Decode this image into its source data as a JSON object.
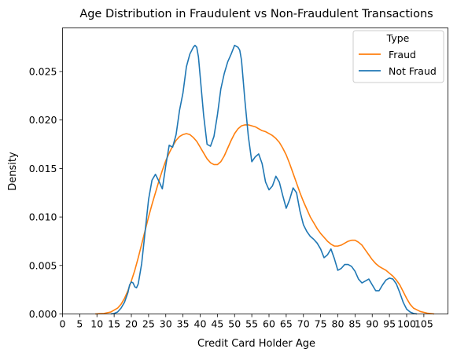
{
  "chart_data": {
    "type": "line",
    "title": "Age Distribution in Fraudulent vs Non-Fraudulent Transactions",
    "xlabel": "Credit Card Holder Age",
    "ylabel": "Density",
    "xlim": [
      0,
      112
    ],
    "ylim": [
      0,
      0.0295
    ],
    "x_ticks": [
      0,
      5,
      10,
      15,
      20,
      25,
      30,
      35,
      40,
      45,
      50,
      55,
      60,
      65,
      70,
      75,
      80,
      85,
      90,
      95,
      100,
      105
    ],
    "y_ticks": [
      0.0,
      0.005,
      0.01,
      0.015,
      0.02,
      0.025
    ],
    "y_tick_labels": [
      "0.000",
      "0.005",
      "0.010",
      "0.015",
      "0.020",
      "0.025"
    ],
    "grid": false,
    "legend": {
      "title": "Type",
      "placement": "top-right"
    },
    "series": [
      {
        "name": "Fraud",
        "color": "#ff7f0e",
        "x": [
          9.5,
          12,
          14,
          16,
          17,
          18,
          19,
          20,
          21,
          22,
          23,
          24,
          25,
          26,
          27,
          28,
          29,
          30,
          31,
          32,
          33,
          34,
          35,
          36,
          37,
          38,
          39,
          40,
          41,
          42,
          43,
          44,
          45,
          46,
          47,
          48,
          49,
          50,
          51,
          52,
          53,
          54,
          55,
          56,
          57,
          58,
          59,
          60,
          61,
          62,
          63,
          64,
          65,
          66,
          67,
          68,
          69,
          70,
          71,
          72,
          73,
          74,
          75,
          76,
          77,
          78,
          79,
          80,
          81,
          82,
          83,
          84,
          85,
          86,
          87,
          88,
          89,
          90,
          91,
          92,
          93,
          94,
          95,
          96,
          97,
          98,
          99,
          100,
          101,
          102,
          104,
          106,
          108
        ],
        "y": [
          0.0,
          5e-05,
          0.0002,
          0.0006,
          0.001,
          0.0016,
          0.0024,
          0.0034,
          0.0045,
          0.0058,
          0.0072,
          0.0086,
          0.01,
          0.0113,
          0.0125,
          0.0137,
          0.0148,
          0.0158,
          0.0166,
          0.0173,
          0.0179,
          0.0183,
          0.0185,
          0.0186,
          0.0185,
          0.0182,
          0.0178,
          0.0172,
          0.0166,
          0.016,
          0.0156,
          0.0154,
          0.0154,
          0.0157,
          0.0163,
          0.0171,
          0.0179,
          0.0186,
          0.0191,
          0.0194,
          0.0195,
          0.0195,
          0.0194,
          0.0193,
          0.0191,
          0.0189,
          0.0188,
          0.0186,
          0.0184,
          0.0181,
          0.0177,
          0.0171,
          0.0164,
          0.0155,
          0.0145,
          0.0135,
          0.0125,
          0.0116,
          0.0108,
          0.01,
          0.0094,
          0.0088,
          0.0083,
          0.0079,
          0.0075,
          0.0072,
          0.007,
          0.007,
          0.0071,
          0.0073,
          0.0075,
          0.0076,
          0.0076,
          0.0074,
          0.0071,
          0.0066,
          0.0061,
          0.0056,
          0.0052,
          0.0049,
          0.0047,
          0.0045,
          0.0042,
          0.0039,
          0.0035,
          0.003,
          0.0023,
          0.0016,
          0.001,
          0.0006,
          0.00025,
          8e-05,
          0.0
        ]
      },
      {
        "name": "Not Fraud",
        "color": "#1f77b4",
        "x": [
          14,
          15,
          16,
          17,
          18,
          19,
          19.5,
          20,
          20.5,
          21,
          21.5,
          22,
          23,
          24,
          25,
          26,
          27,
          28,
          29,
          30,
          31,
          32,
          33,
          34,
          35,
          36,
          37,
          38,
          38.5,
          39,
          39.5,
          40,
          41,
          42,
          43,
          44,
          45,
          46,
          47,
          48,
          49,
          50,
          51,
          51.5,
          52,
          53,
          54,
          55,
          56,
          57,
          58,
          59,
          60,
          61,
          62,
          63,
          64,
          65,
          66,
          67,
          68,
          69,
          70,
          71,
          72,
          73,
          74,
          75,
          76,
          77,
          78,
          79,
          80,
          81,
          82,
          83,
          84,
          85,
          86,
          87,
          88,
          89,
          90,
          91,
          92,
          93,
          94,
          95,
          96,
          97,
          98,
          99,
          100,
          101,
          102,
          103
        ],
        "y": [
          0.0,
          5e-05,
          0.0002,
          0.0006,
          0.0012,
          0.0022,
          0.003,
          0.0033,
          0.0032,
          0.0028,
          0.0027,
          0.0031,
          0.0052,
          0.0085,
          0.0118,
          0.0138,
          0.0144,
          0.0137,
          0.0129,
          0.0153,
          0.0174,
          0.0172,
          0.0185,
          0.021,
          0.0228,
          0.0255,
          0.0268,
          0.0275,
          0.0277,
          0.0275,
          0.0265,
          0.0245,
          0.0205,
          0.0175,
          0.0173,
          0.0183,
          0.0205,
          0.0232,
          0.0248,
          0.026,
          0.0268,
          0.0277,
          0.0275,
          0.0272,
          0.0262,
          0.022,
          0.0183,
          0.0157,
          0.0162,
          0.0165,
          0.0155,
          0.0136,
          0.0128,
          0.0132,
          0.0142,
          0.0136,
          0.0122,
          0.0109,
          0.0118,
          0.013,
          0.0125,
          0.0106,
          0.0092,
          0.0085,
          0.008,
          0.0077,
          0.0073,
          0.0067,
          0.0058,
          0.0061,
          0.0067,
          0.0057,
          0.0045,
          0.0047,
          0.0051,
          0.0051,
          0.0049,
          0.0044,
          0.0036,
          0.0032,
          0.0034,
          0.0036,
          0.003,
          0.0024,
          0.0024,
          0.003,
          0.0035,
          0.0037,
          0.0036,
          0.0031,
          0.0022,
          0.0012,
          0.0005,
          0.0002,
          5e-05,
          0.0
        ]
      }
    ]
  }
}
